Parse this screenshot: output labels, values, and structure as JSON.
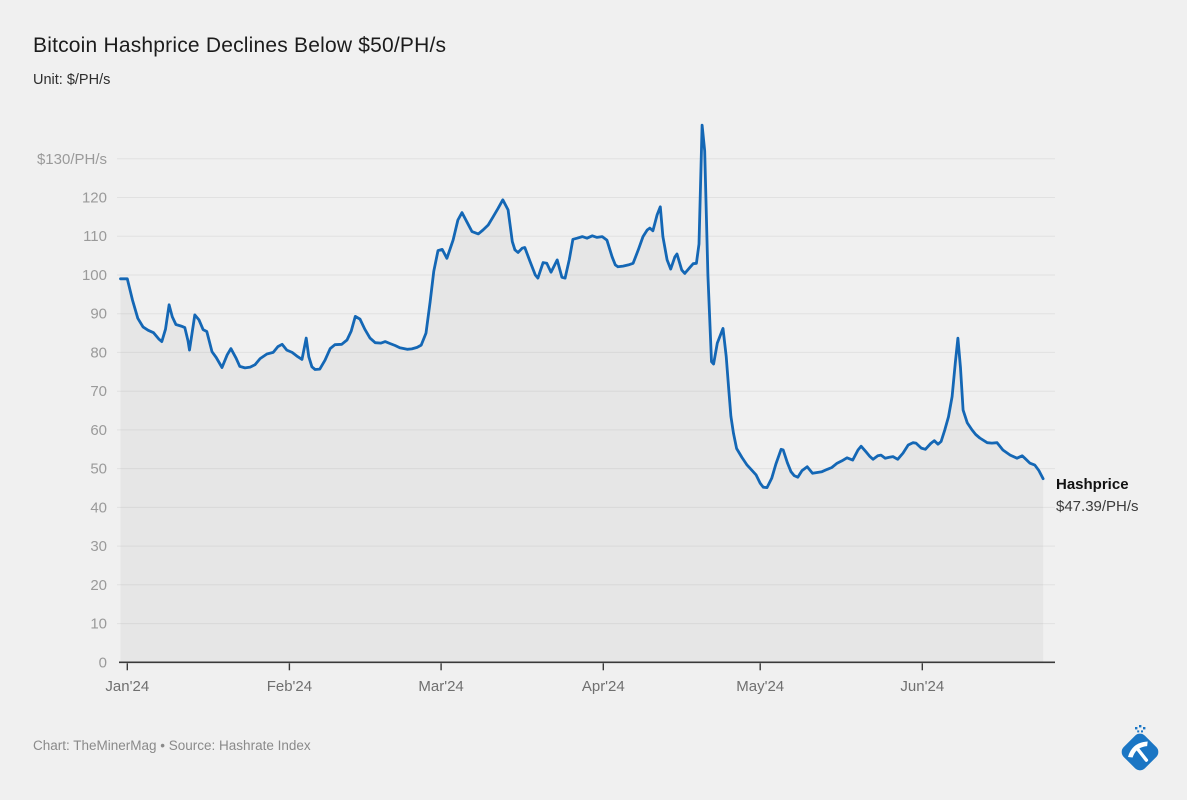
{
  "header": {
    "title": "Bitcoin Hashprice Declines Below $50/PH/s",
    "subtitle": "Unit: $/PH/s"
  },
  "annotation": {
    "label": "Hashprice",
    "value": "$47.39/PH/s"
  },
  "footer": {
    "credit": "Chart: TheMinerMag • Source: Hashrate Index"
  },
  "colors": {
    "background": "#f0f0f0",
    "line": "#1467b5",
    "area_fill": "#e3e3e3",
    "axis": "#3a3a3a",
    "grid": "rgba(0,0,0,0.06)",
    "logo_blue": "#1b76c4"
  },
  "chart_data": {
    "type": "area",
    "title": "Bitcoin Hashprice Declines Below $50/PH/s",
    "unit": "$/PH/s",
    "xlabel": "",
    "ylabel": "$/PH/s",
    "ylim": [
      0,
      140
    ],
    "x_range_days": [
      0,
      175.1
    ],
    "grid": "horizontal",
    "legend_position": "none",
    "y_ticks": [
      {
        "label": "$130/PH/s",
        "value": 130
      },
      {
        "label": "120",
        "value": 120
      },
      {
        "label": "110",
        "value": 110
      },
      {
        "label": "100",
        "value": 100
      },
      {
        "label": "90",
        "value": 90
      },
      {
        "label": "80",
        "value": 80
      },
      {
        "label": "70",
        "value": 70
      },
      {
        "label": "60",
        "value": 60
      },
      {
        "label": "50",
        "value": 50
      },
      {
        "label": "40",
        "value": 40
      },
      {
        "label": "30",
        "value": 30
      },
      {
        "label": "20",
        "value": 20
      },
      {
        "label": "10",
        "value": 10
      },
      {
        "label": "0",
        "value": 0
      }
    ],
    "x_ticks": [
      {
        "label": "Jan'24",
        "day": 0
      },
      {
        "label": "Feb'24",
        "day": 31
      },
      {
        "label": "Mar'24",
        "day": 60
      },
      {
        "label": "Apr'24",
        "day": 91
      },
      {
        "label": "May'24",
        "day": 121
      },
      {
        "label": "Jun'24",
        "day": 152
      }
    ],
    "end_label": {
      "name": "Hashprice",
      "value": 47.39,
      "value_text": "$47.39/PH/s"
    },
    "series": [
      {
        "name": "Hashprice",
        "points": [
          [
            0,
            99
          ],
          [
            1,
            93.5
          ],
          [
            2,
            88.8
          ],
          [
            3,
            86.6
          ],
          [
            4,
            85.7
          ],
          [
            5,
            85.1
          ],
          [
            6,
            83.5
          ],
          [
            6.6,
            82.8
          ],
          [
            7.3,
            86
          ],
          [
            8,
            92.3
          ],
          [
            8.6,
            89.2
          ],
          [
            9.3,
            87.2
          ],
          [
            10.3,
            86.8
          ],
          [
            11,
            86.4
          ],
          [
            11.6,
            83
          ],
          [
            11.9,
            80.6
          ],
          [
            12.9,
            89.7
          ],
          [
            13.7,
            88.4
          ],
          [
            14.5,
            85.9
          ],
          [
            15.2,
            85.4
          ],
          [
            16.2,
            80.2
          ],
          [
            17,
            78.7
          ],
          [
            18.1,
            76.1
          ],
          [
            19.1,
            79.4
          ],
          [
            19.8,
            81
          ],
          [
            20.8,
            78.5
          ],
          [
            21.5,
            76.4
          ],
          [
            22.5,
            76
          ],
          [
            23.5,
            76.2
          ],
          [
            24.4,
            76.8
          ],
          [
            25.4,
            78.4
          ],
          [
            26.7,
            79.6
          ],
          [
            27.9,
            80
          ],
          [
            28.8,
            81.5
          ],
          [
            29.6,
            82.1
          ],
          [
            30.5,
            80.6
          ],
          [
            31.5,
            80
          ],
          [
            32.6,
            78.9
          ],
          [
            33.4,
            78.2
          ],
          [
            34.2,
            83.7
          ],
          [
            34.7,
            78.9
          ],
          [
            35.3,
            76.3
          ],
          [
            35.9,
            75.6
          ],
          [
            36.8,
            75.7
          ],
          [
            37.8,
            78
          ],
          [
            38.8,
            81
          ],
          [
            39.7,
            82
          ],
          [
            41,
            82.1
          ],
          [
            42,
            83.2
          ],
          [
            42.8,
            85.5
          ],
          [
            43.6,
            89.3
          ],
          [
            44.5,
            88.6
          ],
          [
            45.4,
            86
          ],
          [
            46.4,
            83.7
          ],
          [
            47.4,
            82.5
          ],
          [
            48.5,
            82.4
          ],
          [
            49.3,
            82.8
          ],
          [
            50.2,
            82.3
          ],
          [
            51.2,
            81.8
          ],
          [
            52.1,
            81.2
          ],
          [
            53.5,
            80.8
          ],
          [
            54.4,
            80.9
          ],
          [
            55.4,
            81.3
          ],
          [
            56.2,
            81.9
          ],
          [
            57.1,
            85
          ],
          [
            57.9,
            93
          ],
          [
            58.6,
            101
          ],
          [
            59.4,
            106.3
          ],
          [
            60.2,
            106.6
          ],
          [
            61.1,
            104.3
          ],
          [
            62.3,
            109
          ],
          [
            63.2,
            114.2
          ],
          [
            64,
            116.1
          ],
          [
            65,
            113.5
          ],
          [
            65.9,
            111.2
          ],
          [
            67.1,
            110.6
          ],
          [
            68,
            111.6
          ],
          [
            69,
            112.9
          ],
          [
            69.9,
            114.9
          ],
          [
            70.9,
            117.2
          ],
          [
            71.8,
            119.4
          ],
          [
            72.8,
            116.8
          ],
          [
            73.6,
            108.6
          ],
          [
            74.1,
            106.5
          ],
          [
            74.7,
            105.8
          ],
          [
            75.5,
            106.9
          ],
          [
            76,
            107.1
          ],
          [
            77,
            103.5
          ],
          [
            78,
            100
          ],
          [
            78.5,
            99.2
          ],
          [
            79.5,
            103.2
          ],
          [
            80.2,
            103
          ],
          [
            81,
            100.7
          ],
          [
            82.2,
            103.9
          ],
          [
            83.1,
            99.4
          ],
          [
            83.7,
            99.2
          ],
          [
            84.5,
            104
          ],
          [
            85.2,
            109.2
          ],
          [
            86,
            109.5
          ],
          [
            87,
            109.9
          ],
          [
            87.9,
            109.5
          ],
          [
            88.9,
            110.1
          ],
          [
            89.8,
            109.7
          ],
          [
            90.8,
            109.9
          ],
          [
            91.7,
            109
          ],
          [
            92.7,
            104.7
          ],
          [
            93.3,
            102.6
          ],
          [
            93.8,
            102.1
          ],
          [
            94.8,
            102.3
          ],
          [
            95.8,
            102.6
          ],
          [
            96.7,
            103
          ],
          [
            97.7,
            106.5
          ],
          [
            98.6,
            109.9
          ],
          [
            99.4,
            111.6
          ],
          [
            99.9,
            112.1
          ],
          [
            100.5,
            111.4
          ],
          [
            101.3,
            115.5
          ],
          [
            101.9,
            117.6
          ],
          [
            102.4,
            109.9
          ],
          [
            103.2,
            103.9
          ],
          [
            103.9,
            101.5
          ],
          [
            104.7,
            104.7
          ],
          [
            105.1,
            105.4
          ],
          [
            106,
            101.3
          ],
          [
            106.6,
            100.4
          ],
          [
            107.6,
            102
          ],
          [
            108.2,
            102.9
          ],
          [
            108.8,
            103
          ],
          [
            109.3,
            108
          ],
          [
            109.9,
            138.7
          ],
          [
            110.4,
            132
          ],
          [
            111,
            100
          ],
          [
            111.7,
            77.6
          ],
          [
            112.1,
            77
          ],
          [
            112.8,
            82.4
          ],
          [
            113.9,
            86.2
          ],
          [
            114.5,
            79
          ],
          [
            115,
            70.3
          ],
          [
            115.4,
            63.5
          ],
          [
            115.9,
            59.1
          ],
          [
            116.5,
            55.2
          ],
          [
            117.5,
            52.9
          ],
          [
            118.5,
            50.9
          ],
          [
            119.4,
            49.6
          ],
          [
            120.2,
            48.4
          ],
          [
            121,
            46.2
          ],
          [
            121.6,
            45.2
          ],
          [
            122.3,
            45.1
          ],
          [
            123.2,
            47.5
          ],
          [
            124,
            51.2
          ],
          [
            125,
            55
          ],
          [
            125.4,
            54.8
          ],
          [
            126.2,
            51.5
          ],
          [
            126.9,
            49.2
          ],
          [
            127.5,
            48.2
          ],
          [
            128.2,
            47.8
          ],
          [
            129,
            49.5
          ],
          [
            130,
            50.5
          ],
          [
            131,
            48.8
          ],
          [
            131.9,
            49
          ],
          [
            132.8,
            49.2
          ],
          [
            133.8,
            49.8
          ],
          [
            134.7,
            50.3
          ],
          [
            135.7,
            51.4
          ],
          [
            136.6,
            52
          ],
          [
            137.6,
            52.8
          ],
          [
            138.7,
            52.2
          ],
          [
            139.7,
            54.8
          ],
          [
            140.3,
            55.8
          ],
          [
            141.2,
            54.4
          ],
          [
            142,
            53.1
          ],
          [
            142.6,
            52.4
          ],
          [
            143.5,
            53.3
          ],
          [
            144.1,
            53.5
          ],
          [
            144.9,
            52.7
          ],
          [
            145.6,
            52.9
          ],
          [
            146.4,
            53.1
          ],
          [
            147.3,
            52.4
          ],
          [
            148.3,
            54
          ],
          [
            149.3,
            56.1
          ],
          [
            150.2,
            56.7
          ],
          [
            150.8,
            56.6
          ],
          [
            151.8,
            55.3
          ],
          [
            152.6,
            55
          ],
          [
            153.6,
            56.5
          ],
          [
            154.3,
            57.2
          ],
          [
            155,
            56.3
          ],
          [
            155.6,
            57
          ],
          [
            156.3,
            60
          ],
          [
            157,
            63.4
          ],
          [
            157.7,
            68.6
          ],
          [
            158.3,
            77.3
          ],
          [
            158.8,
            83.7
          ],
          [
            159.3,
            76
          ],
          [
            159.8,
            65.1
          ],
          [
            160.6,
            61.8
          ],
          [
            161.5,
            60
          ],
          [
            162.2,
            58.8
          ],
          [
            163,
            57.9
          ],
          [
            164.4,
            56.7
          ],
          [
            165.3,
            56.6
          ],
          [
            166.3,
            56.7
          ],
          [
            167.4,
            54.8
          ],
          [
            168.8,
            53.5
          ],
          [
            170.1,
            52.7
          ],
          [
            171.1,
            53.3
          ],
          [
            171.6,
            52.7
          ],
          [
            172.6,
            51.4
          ],
          [
            173.5,
            50.9
          ],
          [
            174.3,
            49.5
          ],
          [
            175.1,
            47.4
          ]
        ]
      }
    ]
  }
}
